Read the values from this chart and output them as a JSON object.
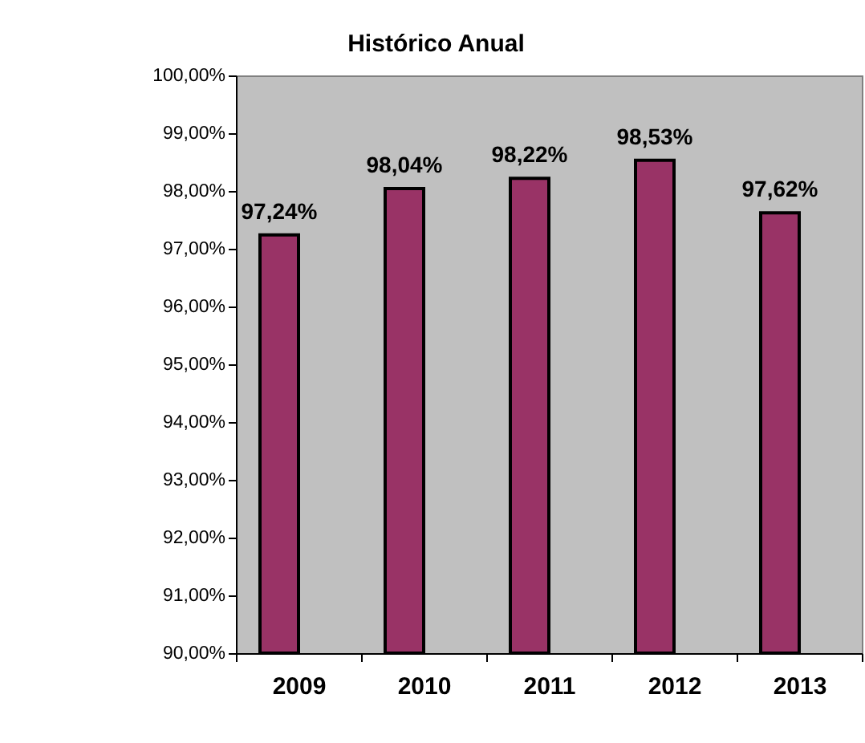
{
  "chart_data": {
    "type": "bar",
    "title": "Histórico Anual",
    "categories": [
      "2009",
      "2010",
      "2011",
      "2012",
      "2013"
    ],
    "series": [
      {
        "color": "#993366",
        "values": [
          97.24,
          98.04,
          98.22,
          98.53,
          97.62
        ],
        "value_labels": [
          "97,24%",
          "98,04%",
          "98,22%",
          "98,53%",
          "97,62%"
        ]
      }
    ],
    "ylim": [
      90,
      100
    ],
    "yticks": [
      {
        "value": 90,
        "label": "90,00%"
      },
      {
        "value": 91,
        "label": "91,00%"
      },
      {
        "value": 92,
        "label": "92,00%"
      },
      {
        "value": 93,
        "label": "93,00%"
      },
      {
        "value": 94,
        "label": "94,00%"
      },
      {
        "value": 95,
        "label": "95,00%"
      },
      {
        "value": 96,
        "label": "96,00%"
      },
      {
        "value": 97,
        "label": "97,00%"
      },
      {
        "value": 98,
        "label": "98,00%"
      },
      {
        "value": 99,
        "label": "99,00%"
      },
      {
        "value": 100,
        "label": "100,00%"
      }
    ],
    "grid": false
  }
}
